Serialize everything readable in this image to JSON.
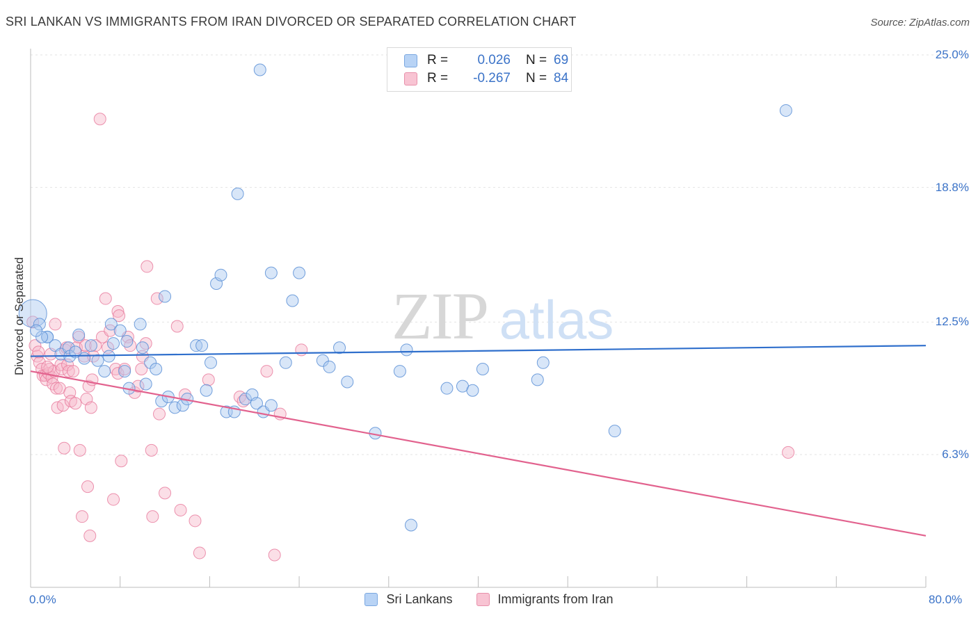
{
  "title": "SRI LANKAN VS IMMIGRANTS FROM IRAN DIVORCED OR SEPARATED CORRELATION CHART",
  "source": "Source: ZipAtlas.com",
  "watermark": {
    "zip": "ZIP",
    "atlas": "atlas"
  },
  "legend_top": [
    {
      "r_label": "R =",
      "r_value": "0.026",
      "n_label": "N =",
      "n_value": "69",
      "fill": "#b8d3f5",
      "stroke": "#7aa7e0"
    },
    {
      "r_label": "R =",
      "r_value": "-0.267",
      "n_label": "N =",
      "n_value": "84",
      "fill": "#f8c4d3",
      "stroke": "#e890aa"
    }
  ],
  "x_min_label": "0.0%",
  "x_max_label": "80.0%",
  "chart_data": {
    "type": "scatter",
    "title": "SRI LANKAN VS IMMIGRANTS FROM IRAN DIVORCED OR SEPARATED CORRELATION CHART",
    "xlabel": "",
    "ylabel": "Divorced or Separated",
    "xlim": [
      0,
      80
    ],
    "ylim": [
      0,
      26
    ],
    "y_ticks": [
      6.3,
      12.5,
      18.8,
      25.0
    ],
    "y_tick_labels": [
      "6.3%",
      "12.5%",
      "18.8%",
      "25.0%"
    ],
    "x_tick_labels": [
      "0.0%",
      "80.0%"
    ],
    "grid": true,
    "legend_position": "top-center",
    "series": [
      {
        "name": "Sri Lankans",
        "color": "#5b8fd6",
        "fill": "#a9c8f0",
        "trend": {
          "x": [
            0,
            80
          ],
          "y": [
            10.9,
            11.4
          ]
        },
        "points": [
          [
            0.2,
            12.9
          ],
          [
            0.8,
            12.4
          ],
          [
            1.5,
            11.8
          ],
          [
            1.5,
            11.8
          ],
          [
            2.2,
            11.4
          ],
          [
            2.7,
            11.0
          ],
          [
            3.4,
            11.3
          ],
          [
            3.5,
            10.9
          ],
          [
            4.0,
            11.1
          ],
          [
            4.3,
            11.9
          ],
          [
            4.8,
            10.8
          ],
          [
            5.4,
            11.4
          ],
          [
            6.0,
            10.7
          ],
          [
            6.6,
            10.2
          ],
          [
            7.0,
            10.9
          ],
          [
            7.2,
            12.4
          ],
          [
            7.4,
            11.5
          ],
          [
            8.0,
            12.1
          ],
          [
            8.4,
            10.2
          ],
          [
            8.6,
            11.6
          ],
          [
            8.8,
            9.4
          ],
          [
            9.8,
            12.4
          ],
          [
            10.0,
            11.3
          ],
          [
            10.3,
            9.6
          ],
          [
            10.7,
            10.6
          ],
          [
            11.2,
            10.3
          ],
          [
            11.7,
            8.8
          ],
          [
            12.0,
            13.7
          ],
          [
            12.3,
            9.0
          ],
          [
            12.9,
            8.5
          ],
          [
            13.6,
            8.6
          ],
          [
            14.0,
            8.9
          ],
          [
            14.8,
            11.4
          ],
          [
            15.3,
            11.4
          ],
          [
            15.7,
            9.3
          ],
          [
            16.1,
            10.6
          ],
          [
            16.6,
            14.3
          ],
          [
            17.0,
            14.7
          ],
          [
            17.5,
            8.3
          ],
          [
            18.2,
            8.3
          ],
          [
            18.5,
            18.5
          ],
          [
            19.2,
            8.9
          ],
          [
            19.8,
            9.1
          ],
          [
            20.2,
            8.7
          ],
          [
            20.8,
            8.3
          ],
          [
            21.5,
            8.6
          ],
          [
            21.5,
            14.8
          ],
          [
            20.5,
            24.3
          ],
          [
            22.8,
            10.6
          ],
          [
            23.4,
            13.5
          ],
          [
            24.0,
            14.8
          ],
          [
            26.1,
            10.7
          ],
          [
            26.7,
            10.4
          ],
          [
            27.6,
            11.3
          ],
          [
            28.3,
            9.7
          ],
          [
            30.8,
            7.3
          ],
          [
            33.0,
            10.2
          ],
          [
            33.6,
            11.2
          ],
          [
            34.0,
            3.0
          ],
          [
            37.2,
            9.4
          ],
          [
            38.6,
            9.5
          ],
          [
            39.5,
            9.3
          ],
          [
            40.4,
            10.3
          ],
          [
            45.3,
            9.8
          ],
          [
            45.8,
            10.6
          ],
          [
            52.2,
            7.4
          ],
          [
            67.5,
            22.4
          ],
          [
            1.0,
            11.8
          ],
          [
            0.5,
            12.1
          ]
        ]
      },
      {
        "name": "Immigrants from Iran",
        "color": "#e7789b",
        "fill": "#f6b8ca",
        "trend": {
          "x": [
            0,
            80
          ],
          "y": [
            10.2,
            2.5
          ]
        },
        "points": [
          [
            0.2,
            12.5
          ],
          [
            0.4,
            11.4
          ],
          [
            0.6,
            10.9
          ],
          [
            0.8,
            10.6
          ],
          [
            1.0,
            10.3
          ],
          [
            1.1,
            10.0
          ],
          [
            1.3,
            10.0
          ],
          [
            1.4,
            9.8
          ],
          [
            1.6,
            10.1
          ],
          [
            1.7,
            10.3
          ],
          [
            1.8,
            11.0
          ],
          [
            1.9,
            9.9
          ],
          [
            2.0,
            9.6
          ],
          [
            2.1,
            10.2
          ],
          [
            2.2,
            12.4
          ],
          [
            2.3,
            9.4
          ],
          [
            2.4,
            8.5
          ],
          [
            2.6,
            9.4
          ],
          [
            2.7,
            10.5
          ],
          [
            2.8,
            10.3
          ],
          [
            2.9,
            8.6
          ],
          [
            3.0,
            6.6
          ],
          [
            3.1,
            11.2
          ],
          [
            3.2,
            11.3
          ],
          [
            3.3,
            10.5
          ],
          [
            3.4,
            10.2
          ],
          [
            3.5,
            9.2
          ],
          [
            3.6,
            8.8
          ],
          [
            3.8,
            10.2
          ],
          [
            4.0,
            8.7
          ],
          [
            4.1,
            11.3
          ],
          [
            4.3,
            11.8
          ],
          [
            4.4,
            6.5
          ],
          [
            4.6,
            3.4
          ],
          [
            4.8,
            10.9
          ],
          [
            4.9,
            11.4
          ],
          [
            5.0,
            8.9
          ],
          [
            5.1,
            4.8
          ],
          [
            5.2,
            9.5
          ],
          [
            5.3,
            2.5
          ],
          [
            5.4,
            8.5
          ],
          [
            5.5,
            9.8
          ],
          [
            5.6,
            10.9
          ],
          [
            5.8,
            11.4
          ],
          [
            6.2,
            22.0
          ],
          [
            6.4,
            11.8
          ],
          [
            6.7,
            13.6
          ],
          [
            6.9,
            11.3
          ],
          [
            7.1,
            12.1
          ],
          [
            7.4,
            4.2
          ],
          [
            7.6,
            10.3
          ],
          [
            7.8,
            10.1
          ],
          [
            7.8,
            13.0
          ],
          [
            7.9,
            12.8
          ],
          [
            8.1,
            6.0
          ],
          [
            8.4,
            10.3
          ],
          [
            8.7,
            11.8
          ],
          [
            8.9,
            11.4
          ],
          [
            9.3,
            9.2
          ],
          [
            9.6,
            9.5
          ],
          [
            9.9,
            10.3
          ],
          [
            10.0,
            10.9
          ],
          [
            10.3,
            11.5
          ],
          [
            10.4,
            15.1
          ],
          [
            10.8,
            6.5
          ],
          [
            10.9,
            3.4
          ],
          [
            11.3,
            13.6
          ],
          [
            11.5,
            8.2
          ],
          [
            12.0,
            4.5
          ],
          [
            13.1,
            12.3
          ],
          [
            13.4,
            3.7
          ],
          [
            13.8,
            9.1
          ],
          [
            14.7,
            3.2
          ],
          [
            15.1,
            1.7
          ],
          [
            15.9,
            9.8
          ],
          [
            18.7,
            9.0
          ],
          [
            19.0,
            8.8
          ],
          [
            21.1,
            10.2
          ],
          [
            21.8,
            1.6
          ],
          [
            22.3,
            8.2
          ],
          [
            24.2,
            11.2
          ],
          [
            67.7,
            6.4
          ],
          [
            0.7,
            11.1
          ],
          [
            1.5,
            10.4
          ]
        ]
      }
    ]
  }
}
